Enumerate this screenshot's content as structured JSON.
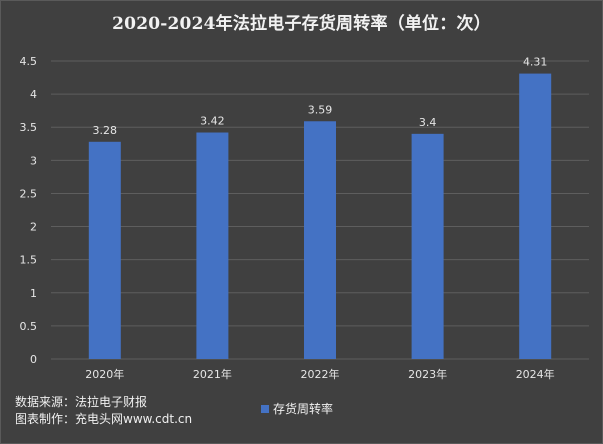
{
  "colors": {
    "background": "#404040",
    "bar": "#4472c4",
    "grid": "#5e5e5e",
    "text": "#e6e6e6"
  },
  "footer": {
    "source": "数据来源：法拉电子财报",
    "made_by": "图表制作：充电头网www.cdt.cn"
  },
  "chart_data": {
    "type": "bar",
    "title": "2020-2024年法拉电子存货周转率（单位：次）",
    "categories": [
      "2020年",
      "2021年",
      "2022年",
      "2023年",
      "2024年"
    ],
    "series": [
      {
        "name": "存货周转率",
        "values": [
          3.28,
          3.42,
          3.59,
          3.4,
          4.31
        ],
        "labels": [
          "3.28",
          "3.42",
          "3.59",
          "3.4",
          "4.31"
        ]
      }
    ],
    "yticks": [
      "0",
      "0.5",
      "1",
      "1.5",
      "2",
      "2.5",
      "3",
      "3.5",
      "4",
      "4.5"
    ],
    "ylim": [
      0,
      4.5
    ],
    "grid": true,
    "legend": "bottom"
  }
}
